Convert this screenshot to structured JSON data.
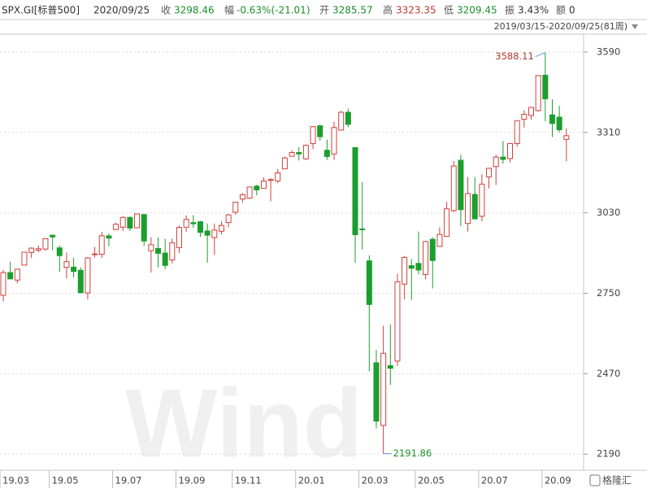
{
  "header": {
    "code": "SPX.GI[标普500]",
    "date": "2020/09/25",
    "items": [
      {
        "label": "收",
        "value": "3298.46"
      },
      {
        "label": "幅",
        "value": "-0.63%(-21.01)"
      },
      {
        "label": "开",
        "value": "3285.57"
      },
      {
        "label": "高",
        "value": "3323.35"
      },
      {
        "label": "低",
        "value": "3209.45"
      },
      {
        "label": "振",
        "value": "3.43%"
      },
      {
        "label": "额",
        "value": "0"
      }
    ],
    "range": "2019/03/15-2020/09/25(81周)"
  },
  "watermark": "Wind",
  "logo": "格隆汇",
  "chart_data": {
    "type": "candlestick",
    "up_color": "#d0403c",
    "down_color": "#1b9e2e",
    "categories": [
      "19.03",
      null,
      null,
      null,
      null,
      null,
      null,
      "19.05",
      null,
      null,
      null,
      null,
      null,
      null,
      null,
      null,
      "19.07",
      null,
      null,
      null,
      null,
      null,
      null,
      null,
      null,
      "19.09",
      null,
      null,
      null,
      null,
      null,
      null,
      null,
      "19.11",
      null,
      null,
      null,
      null,
      null,
      null,
      null,
      null,
      "20.01",
      null,
      null,
      null,
      null,
      null,
      null,
      null,
      null,
      "20.03",
      null,
      null,
      null,
      null,
      null,
      null,
      null,
      "20.05",
      null,
      null,
      null,
      null,
      null,
      null,
      null,
      null,
      "20.07",
      null,
      null,
      null,
      null,
      null,
      null,
      null,
      null,
      "20.09",
      null,
      null,
      null
    ],
    "open": [
      2743,
      2822,
      2796,
      2848,
      2892,
      2900,
      2904,
      2952,
      2908,
      2840,
      2841,
      2830,
      2751,
      2885,
      2886,
      2950,
      2972,
      2980,
      3014,
      2978,
      3024,
      2898,
      2906,
      2890,
      2866,
      2909,
      2980,
      2996,
      2999,
      2967,
      2944,
      2966,
      2996,
      3032,
      3078,
      3081,
      3123,
      3115,
      3143,
      3141,
      3183,
      3227,
      3240,
      3218,
      3271,
      3333,
      3248,
      3235,
      3318,
      3380,
      3257,
      2974,
      2863,
      2508,
      2290,
      2498,
      2514,
      2782,
      2846,
      2854,
      2815,
      2938,
      2913,
      2948,
      3038,
      3213,
      2993,
      3094,
      3018,
      3155,
      3191,
      3224,
      3219,
      3271,
      3356,
      3369,
      3386,
      3509,
      3371,
      3363,
      3285.57
    ],
    "high": [
      2831,
      2860,
      2836,
      2893,
      2910,
      2916,
      2940,
      2954,
      2917,
      2892,
      2874,
      2840,
      2876,
      2911,
      2964,
      2958,
      2996,
      3018,
      3018,
      3028,
      3027,
      2945,
      2944,
      2939,
      2940,
      2985,
      3021,
      3022,
      3002,
      2993,
      2993,
      3000,
      3027,
      3067,
      3098,
      3120,
      3128,
      3154,
      3150,
      3183,
      3226,
      3248,
      3259,
      3268,
      3330,
      3337,
      3285,
      3347,
      3385,
      3393,
      3259,
      3137,
      2882,
      2553,
      2637,
      2641,
      2818,
      2880,
      2869,
      2965,
      2933,
      2945,
      2980,
      3068,
      3211,
      3233,
      3155,
      3155,
      3165,
      3186,
      3233,
      3280,
      3272,
      3352,
      3387,
      3399,
      3509,
      3588.11,
      3425,
      3402,
      3323.35
    ],
    "low": [
      2722,
      2800,
      2785,
      2848,
      2873,
      2893,
      2898,
      2900,
      2825,
      2801,
      2805,
      2750,
      2729,
      2874,
      2873,
      2913,
      2970,
      2967,
      2967,
      2976,
      2914,
      2822,
      2840,
      2834,
      2853,
      2891,
      2964,
      2978,
      2946,
      2856,
      2884,
      2955,
      2979,
      3023,
      3066,
      3078,
      3091,
      3114,
      3070,
      3133,
      3183,
      3226,
      3212,
      3214,
      3252,
      3281,
      3214,
      3214,
      3316,
      3328,
      2856,
      2902,
      2478,
      2280,
      2191.86,
      2431,
      2497,
      2729,
      2727,
      2815,
      2798,
      2767,
      2913,
      2948,
      3032,
      2984,
      2965,
      3008,
      3001,
      3115,
      3127,
      3201,
      3205,
      3260,
      3327,
      3355,
      3382,
      3349,
      3294,
      3310,
      3209.45
    ],
    "close": [
      2822,
      2800,
      2834,
      2893,
      2907,
      2905,
      2940,
      2946,
      2881,
      2860,
      2826,
      2752,
      2873,
      2887,
      2950,
      2942,
      2990,
      3014,
      2977,
      3026,
      2932,
      2919,
      2889,
      2847,
      2926,
      2979,
      3007,
      2992,
      2962,
      2952,
      2970,
      2986,
      3023,
      3067,
      3093,
      3120,
      3110,
      3141,
      3146,
      3169,
      3221,
      3240,
      3235,
      3265,
      3330,
      3295,
      3226,
      3327,
      3380,
      3338,
      2954,
      2972,
      2711,
      2305,
      2541,
      2489,
      2790,
      2875,
      2837,
      2831,
      2930,
      2864,
      2955,
      3044,
      3193,
      3041,
      3097,
      3009,
      3130,
      3185,
      3224,
      3216,
      3271,
      3351,
      3373,
      3397,
      3508,
      3427,
      3341,
      3319,
      3298.46
    ],
    "ylim": [
      2134,
      3652
    ],
    "yticks": [
      2190,
      2470,
      2750,
      3030,
      3310,
      3590
    ],
    "grid": true
  }
}
